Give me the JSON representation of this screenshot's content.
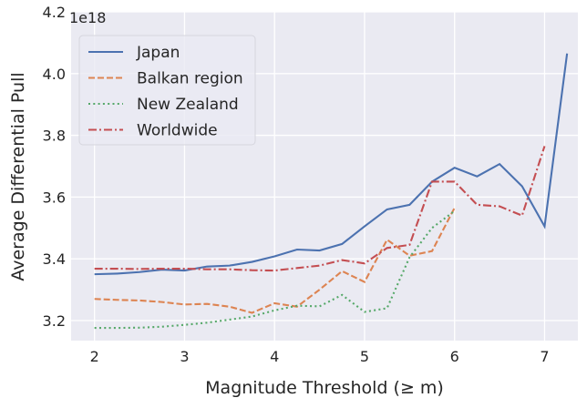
{
  "chart_data": {
    "type": "line",
    "title": "",
    "xlabel": "Magnitude Threshold ($\\geq m$)",
    "xlabel_display": "Magnitude Threshold (≥ m)",
    "ylabel": "Average Differential Pull",
    "y_offset_label": "1e18",
    "xlim": [
      1.74,
      7.37
    ],
    "ylim": [
      3.135,
      4.2
    ],
    "xticks": [
      2,
      3,
      4,
      5,
      6,
      7
    ],
    "yticks": [
      3.2,
      3.4,
      3.6,
      3.8,
      4.0,
      4.2
    ],
    "ytick_labels": [
      "3.2",
      "3.4",
      "3.6",
      "3.8",
      "4.0",
      "4.2"
    ],
    "grid": true,
    "legend_placement": "top-left",
    "background": "#eaeaf2",
    "series": [
      {
        "name": "Japan",
        "color": "#4c72b0",
        "dash": "solid",
        "x": [
          2,
          2.25,
          2.5,
          2.75,
          3,
          3.25,
          3.5,
          3.75,
          4,
          4.25,
          4.5,
          4.75,
          5,
          5.25,
          5.5,
          5.75,
          6,
          6.25,
          6.5,
          6.75,
          7,
          7.25
        ],
        "y": [
          3.35,
          3.352,
          3.357,
          3.365,
          3.362,
          3.375,
          3.378,
          3.39,
          3.408,
          3.43,
          3.427,
          3.448,
          3.505,
          3.56,
          3.575,
          3.65,
          3.695,
          3.667,
          3.707,
          3.635,
          3.505,
          4.065
        ]
      },
      {
        "name": "Balkan region",
        "color": "#dd8452",
        "dash": "dashed",
        "x": [
          2,
          2.25,
          2.5,
          2.75,
          3,
          3.25,
          3.5,
          3.75,
          4,
          4.25,
          4.5,
          4.75,
          5,
          5.25,
          5.5,
          5.75,
          6
        ],
        "y": [
          3.27,
          3.267,
          3.265,
          3.26,
          3.252,
          3.254,
          3.245,
          3.225,
          3.256,
          3.245,
          3.3,
          3.36,
          3.325,
          3.462,
          3.41,
          3.425,
          3.565
        ]
      },
      {
        "name": "New Zealand",
        "color": "#55a868",
        "dash": "dotted",
        "x": [
          2,
          2.25,
          2.5,
          2.75,
          3,
          3.25,
          3.5,
          3.75,
          4,
          4.25,
          4.5,
          4.75,
          5,
          5.25,
          5.5,
          5.75,
          6
        ],
        "y": [
          3.176,
          3.176,
          3.177,
          3.18,
          3.186,
          3.193,
          3.203,
          3.213,
          3.233,
          3.248,
          3.246,
          3.283,
          3.228,
          3.24,
          3.405,
          3.5,
          3.555
        ]
      },
      {
        "name": "Worldwide",
        "color": "#c44e52",
        "dash": "dashdot",
        "x": [
          2,
          2.25,
          2.5,
          2.75,
          3,
          3.25,
          3.5,
          3.75,
          4,
          4.25,
          4.5,
          4.75,
          5,
          5.25,
          5.5,
          5.75,
          6,
          6.25,
          6.5,
          6.75,
          7
        ],
        "y": [
          3.368,
          3.368,
          3.367,
          3.368,
          3.368,
          3.366,
          3.366,
          3.363,
          3.362,
          3.37,
          3.378,
          3.396,
          3.385,
          3.435,
          3.445,
          3.65,
          3.65,
          3.575,
          3.57,
          3.54,
          3.765
        ]
      }
    ]
  }
}
